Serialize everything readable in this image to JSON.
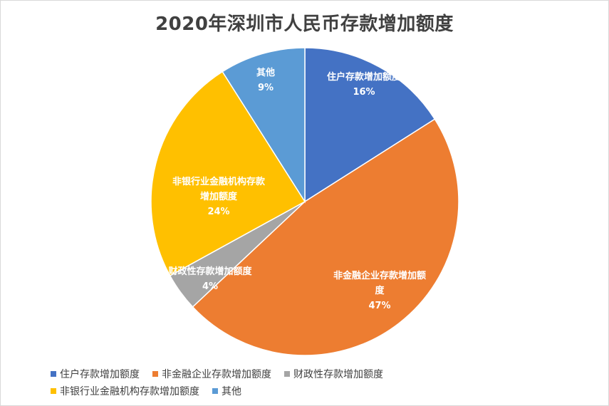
{
  "chart_data": {
    "type": "pie",
    "title": "2020年深圳市人民币存款增加额度",
    "categories": [
      "住户存款增加额度",
      "非金融企业存款增加额度",
      "财政性存款增加额度",
      "非银行业金融机构存款增加额度",
      "其他"
    ],
    "values": [
      16,
      47,
      4,
      24,
      9
    ],
    "value_labels": [
      "16%",
      "47%",
      "4%",
      "24%",
      "9%"
    ],
    "slice_label_lines": [
      [
        "住户存款增加额度"
      ],
      [
        "非金融企业存款增加额",
        "度"
      ],
      [
        "财政性存款增加额度"
      ],
      [
        "非银行业金融机构存款",
        "增加额度"
      ],
      [
        "其他"
      ]
    ],
    "colors": [
      "#4472c4",
      "#ed7d31",
      "#a5a5a5",
      "#ffc000",
      "#5b9bd5"
    ],
    "start_angle_deg": 0,
    "direction": "clockwise",
    "legend": {
      "position": "bottom",
      "rows": [
        [
          0,
          1,
          2
        ],
        [
          3,
          4
        ]
      ]
    }
  }
}
